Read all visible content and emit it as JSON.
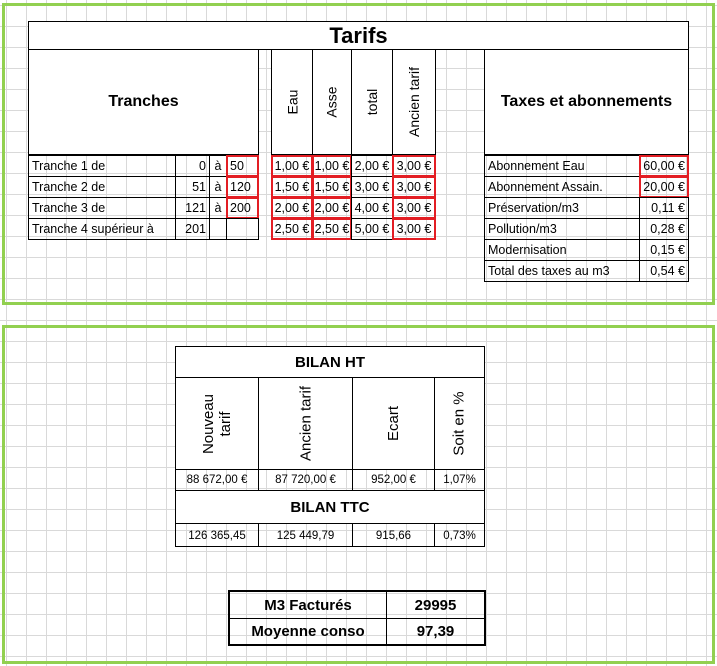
{
  "tarifs": {
    "title": "Tarifs",
    "tranches_header": "Tranches",
    "col_headers": [
      "Eau",
      "Asse",
      "total",
      "Ancien tarif"
    ],
    "taxes_header": "Taxes et abonnements",
    "tranches": [
      {
        "label": "Tranche 1 de",
        "from": "0",
        "a": "à",
        "to": "50",
        "eau": "1,00 €",
        "asse": "1,00 €",
        "total": "2,00 €",
        "ancien": "3,00 €"
      },
      {
        "label": "Tranche 2  de",
        "from": "51",
        "a": "à",
        "to": "120",
        "eau": "1,50 €",
        "asse": "1,50 €",
        "total": "3,00 €",
        "ancien": "3,00 €"
      },
      {
        "label": "Tranche 3  de",
        "from": "121",
        "a": "à",
        "to": "200",
        "eau": "2,00 €",
        "asse": "2,00 €",
        "total": "4,00 €",
        "ancien": "3,00 €"
      },
      {
        "label": "Tranche 4 supérieur  à",
        "from": "201",
        "a": "",
        "to": "",
        "eau": "2,50 €",
        "asse": "2,50 €",
        "total": "5,00 €",
        "ancien": "3,00 €"
      }
    ],
    "taxes": [
      {
        "label": "Abonnement Eau",
        "value": "60,00 €"
      },
      {
        "label": "Abonnement Assain.",
        "value": "20,00 €"
      },
      {
        "label": "Préservation/m3",
        "value": "0,11 €"
      },
      {
        "label": "Pollution/m3",
        "value": "0,28 €"
      },
      {
        "label": "Modernisation",
        "value": "0,15 €"
      },
      {
        "label": "Total des taxes au m3",
        "value": "0,54 €"
      }
    ]
  },
  "bilan": {
    "ht_title": "BILAN HT",
    "headers": [
      "Nouveau tarif",
      "Ancien tarif",
      "Ecart",
      "Soit en %"
    ],
    "ht_values": [
      "88 672,00 €",
      "87 720,00 €",
      "952,00 €",
      "1,07%"
    ],
    "ttc_title": "BILAN TTC",
    "ttc_values": [
      "126 365,45",
      "125 449,79",
      "915,66",
      "0,73%"
    ]
  },
  "summary": [
    {
      "label": "M3 Facturés",
      "value": "29995"
    },
    {
      "label": "Moyenne conso",
      "value": "97,39"
    }
  ],
  "colors": {
    "frame": "#92d050",
    "highlight": "#e31e24",
    "grid": "#d9d9d9"
  }
}
